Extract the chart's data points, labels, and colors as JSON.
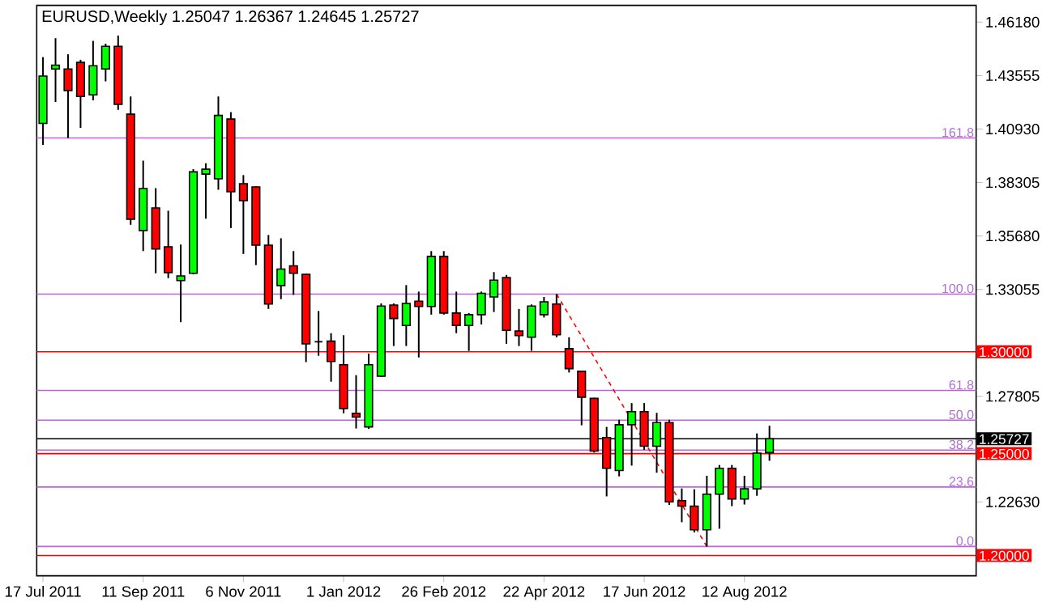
{
  "chart_data": {
    "type": "candlestick",
    "title": "EURUSD,Weekly  1.25047 1.26367 1.24645 1.25727",
    "categories": [
      "17 Jul 2011",
      null,
      null,
      null,
      null,
      null,
      null,
      null,
      "11 Sep 2011",
      null,
      null,
      null,
      null,
      null,
      null,
      null,
      "6 Nov 2011",
      null,
      null,
      null,
      null,
      null,
      null,
      null,
      "1 Jan 2012",
      null,
      null,
      null,
      null,
      null,
      null,
      null,
      "26 Feb 2012",
      null,
      null,
      null,
      null,
      null,
      null,
      null,
      "22 Apr 2012",
      null,
      null,
      null,
      null,
      null,
      null,
      null,
      "17 Jun 2012",
      null,
      null,
      null,
      null,
      null,
      null,
      null,
      "12 Aug 2012",
      null,
      null,
      null,
      null,
      null,
      null,
      null,
      null,
      null,
      null,
      null,
      null,
      null,
      null,
      null,
      null,
      null,
      null
    ],
    "ohlc": [
      [
        1.4121,
        1.4446,
        1.4015,
        1.4353
      ],
      [
        1.4388,
        1.4539,
        1.4226,
        1.4407
      ],
      [
        1.4388,
        1.446,
        1.4049,
        1.4282
      ],
      [
        1.442,
        1.4433,
        1.4099,
        1.4253
      ],
      [
        1.4261,
        1.4526,
        1.4234,
        1.4404
      ],
      [
        1.4388,
        1.4512,
        1.4327,
        1.4499
      ],
      [
        1.4499,
        1.4552,
        1.4187,
        1.4214
      ],
      [
        1.4166,
        1.4253,
        1.3623,
        1.365
      ],
      [
        1.3595,
        1.3938,
        1.3494,
        1.3801
      ],
      [
        1.3706,
        1.3803,
        1.3385,
        1.3504
      ],
      [
        1.3515,
        1.3692,
        1.3361,
        1.3388
      ],
      [
        1.3349,
        1.3526,
        1.3145,
        1.3372
      ],
      [
        1.3385,
        1.3896,
        1.338,
        1.3883
      ],
      [
        1.3872,
        1.3925,
        1.3653,
        1.3896
      ],
      [
        1.3849,
        1.4253,
        1.3795,
        1.416
      ],
      [
        1.4142,
        1.4176,
        1.3607,
        1.3785
      ],
      [
        1.3825,
        1.3867,
        1.348,
        1.3742
      ],
      [
        1.3809,
        1.3812,
        1.3425,
        1.3523
      ],
      [
        1.3523,
        1.3573,
        1.321,
        1.3234
      ],
      [
        1.3325,
        1.3557,
        1.3258,
        1.3406
      ],
      [
        1.3422,
        1.3494,
        1.3279,
        1.3385
      ],
      [
        1.338,
        1.3383,
        1.2949,
        1.3039
      ],
      [
        1.3049,
        1.32,
        1.298,
        1.3049
      ],
      [
        1.3052,
        1.3091,
        1.2853,
        1.2952
      ],
      [
        1.2936,
        1.3081,
        1.2698,
        1.2721
      ],
      [
        1.2698,
        1.2885,
        1.2623,
        1.2679
      ],
      [
        1.2631,
        1.2991,
        1.2621,
        1.2936
      ],
      [
        1.288,
        1.3237,
        1.2876,
        1.3224
      ],
      [
        1.3229,
        1.3237,
        1.3028,
        1.3163
      ],
      [
        1.3129,
        1.3327,
        1.3028,
        1.3237
      ],
      [
        1.3248,
        1.3295,
        1.2972,
        1.3222
      ],
      [
        1.3222,
        1.3494,
        1.3182,
        1.3468
      ],
      [
        1.3468,
        1.3494,
        1.3182,
        1.319
      ],
      [
        1.319,
        1.3295,
        1.3091,
        1.3129
      ],
      [
        1.3129,
        1.319,
        1.3004,
        1.3182
      ],
      [
        1.3182,
        1.3295,
        1.3134,
        1.3287
      ],
      [
        1.3269,
        1.3391,
        1.3195,
        1.3351
      ],
      [
        1.3364,
        1.3377,
        1.3039,
        1.3105
      ],
      [
        1.3102,
        1.321,
        1.3028,
        1.3079
      ],
      [
        1.3071,
        1.3232,
        1.3004,
        1.3224
      ],
      [
        1.3182,
        1.3269,
        1.3168,
        1.3245
      ],
      [
        1.3234,
        1.3283,
        1.3071,
        1.3083
      ],
      [
        1.3015,
        1.3071,
        1.2898,
        1.2917
      ],
      [
        1.2904,
        1.2907,
        1.2639,
        1.2777
      ],
      [
        1.2771,
        1.2774,
        1.2505,
        1.2512
      ],
      [
        1.2579,
        1.2631,
        1.229,
        1.2428
      ],
      [
        1.2417,
        1.2666,
        1.2388,
        1.2642
      ],
      [
        1.2642,
        1.2748,
        1.2441,
        1.2706
      ],
      [
        1.2706,
        1.2748,
        1.2518,
        1.2536
      ],
      [
        1.2536,
        1.27,
        1.2406,
        1.2652
      ],
      [
        1.2652,
        1.2666,
        1.2248,
        1.2263
      ],
      [
        1.2269,
        1.2329,
        1.2163,
        1.2242
      ],
      [
        1.2242,
        1.2325,
        1.2113,
        1.2126
      ],
      [
        1.2126,
        1.2391,
        1.2044,
        1.2301
      ],
      [
        1.2301,
        1.2444,
        1.2131,
        1.2428
      ],
      [
        1.2428,
        1.2444,
        1.2242,
        1.2277
      ],
      [
        1.2277,
        1.2391,
        1.225,
        1.2327
      ],
      [
        1.2327,
        1.2599,
        1.2293,
        1.2502
      ],
      [
        1.25047,
        1.26367,
        1.24645,
        1.25727
      ],
      null,
      null,
      null,
      null,
      null,
      null,
      null,
      null,
      null,
      null,
      null,
      null,
      null,
      null,
      null,
      null
    ],
    "colors": [
      "#00ff00",
      "#00ff00",
      "#ff0000",
      "#ff0000",
      "#00ff00",
      "#00ff00",
      "#ff0000",
      "#ff0000",
      "#00ff00",
      "#ff0000",
      "#ff0000",
      "#00ff00",
      "#00ff00",
      "#00ff00",
      "#00ff00",
      "#ff0000",
      "#ff0000",
      "#ff0000",
      "#ff0000",
      "#00ff00",
      "#ff0000",
      "#ff0000",
      "#000000",
      "#ff0000",
      "#ff0000",
      "#ff0000",
      "#00ff00",
      "#00ff00",
      "#ff0000",
      "#00ff00",
      "#ff0000",
      "#00ff00",
      "#ff0000",
      "#ff0000",
      "#00ff00",
      "#00ff00",
      "#00ff00",
      "#ff0000",
      "#ff0000",
      "#00ff00",
      "#00ff00",
      "#ff0000",
      "#ff0000",
      "#ff0000",
      "#ff0000",
      "#ff0000",
      "#00ff00",
      "#00ff00",
      "#ff0000",
      "#00ff00",
      "#ff0000",
      "#ff0000",
      "#ff0000",
      "#00ff00",
      "#00ff00",
      "#ff0000",
      "#00ff00",
      "#00ff00",
      "#00ff00",
      null,
      null,
      null,
      null,
      null,
      null,
      null,
      null,
      null,
      null,
      null,
      null,
      null,
      null,
      null,
      null
    ],
    "series": [
      {
        "type": "line",
        "color": "#ff0000",
        "line_style": "dashed",
        "values": [
          null,
          null,
          null,
          null,
          null,
          null,
          null,
          null,
          null,
          null,
          null,
          null,
          null,
          null,
          null,
          null,
          null,
          null,
          null,
          null,
          null,
          null,
          null,
          null,
          null,
          null,
          null,
          null,
          null,
          null,
          null,
          null,
          null,
          null,
          null,
          null,
          null,
          null,
          null,
          null,
          null,
          1.3283,
          null,
          null,
          null,
          null,
          null,
          null,
          null,
          null,
          null,
          null,
          null,
          1.2044,
          null,
          null,
          null,
          null,
          null,
          null,
          null,
          null,
          null,
          null,
          null,
          null,
          null,
          null,
          null,
          null,
          null,
          null,
          null,
          null,
          null
        ]
      }
    ],
    "ylim": [
      1.19,
      1.47
    ],
    "yticks": [
      {
        "value": 1.4618,
        "label": "1.46180"
      },
      {
        "value": 1.43555,
        "label": "1.43555"
      },
      {
        "value": 1.4093,
        "label": "1.40930"
      },
      {
        "value": 1.38305,
        "label": "1.38305"
      },
      {
        "value": 1.3568,
        "label": "1.35680"
      },
      {
        "value": 1.33055,
        "label": "1.33055"
      },
      {
        "value": 1.27805,
        "label": "1.27805"
      },
      {
        "value": 1.2263,
        "label": "1.22630"
      }
    ],
    "ref_lines": [
      {
        "axis": "y",
        "value": 1.4049,
        "color": "#c060e0"
      },
      {
        "axis": "y",
        "value": 1.3283,
        "color": "#c060e0"
      },
      {
        "axis": "y",
        "value": 1.281,
        "color": "#c060e0"
      },
      {
        "axis": "y",
        "value": 1.2664,
        "color": "#c060e0"
      },
      {
        "axis": "y",
        "value": 1.2517,
        "color": "#c060e0"
      },
      {
        "axis": "y",
        "value": 1.2336,
        "color": "#c060e0"
      },
      {
        "axis": "y",
        "value": 1.2044,
        "color": "#c060e0"
      },
      {
        "axis": "y",
        "value": 1.3,
        "label": "1.30000",
        "color": "#ff0000"
      },
      {
        "axis": "y",
        "value": 1.25727,
        "label": "1.25727",
        "color": "#000000"
      },
      {
        "axis": "y",
        "value": 1.25,
        "label": "1.25000",
        "color": "#ff0000"
      },
      {
        "axis": "y",
        "value": 1.2,
        "label": "1.20000",
        "color": "#ff0000"
      }
    ],
    "annotations": [
      {
        "text": "161.8",
        "y": 1.4049
      },
      {
        "text": "100.0",
        "y": 1.3283
      },
      {
        "text": "61.8",
        "y": 1.281
      },
      {
        "text": "50.0",
        "y": 1.2664
      },
      {
        "text": "38.2",
        "y": 1.2517
      },
      {
        "text": "23.6",
        "y": 1.2336
      },
      {
        "text": "0.0",
        "y": 1.2044
      }
    ]
  }
}
